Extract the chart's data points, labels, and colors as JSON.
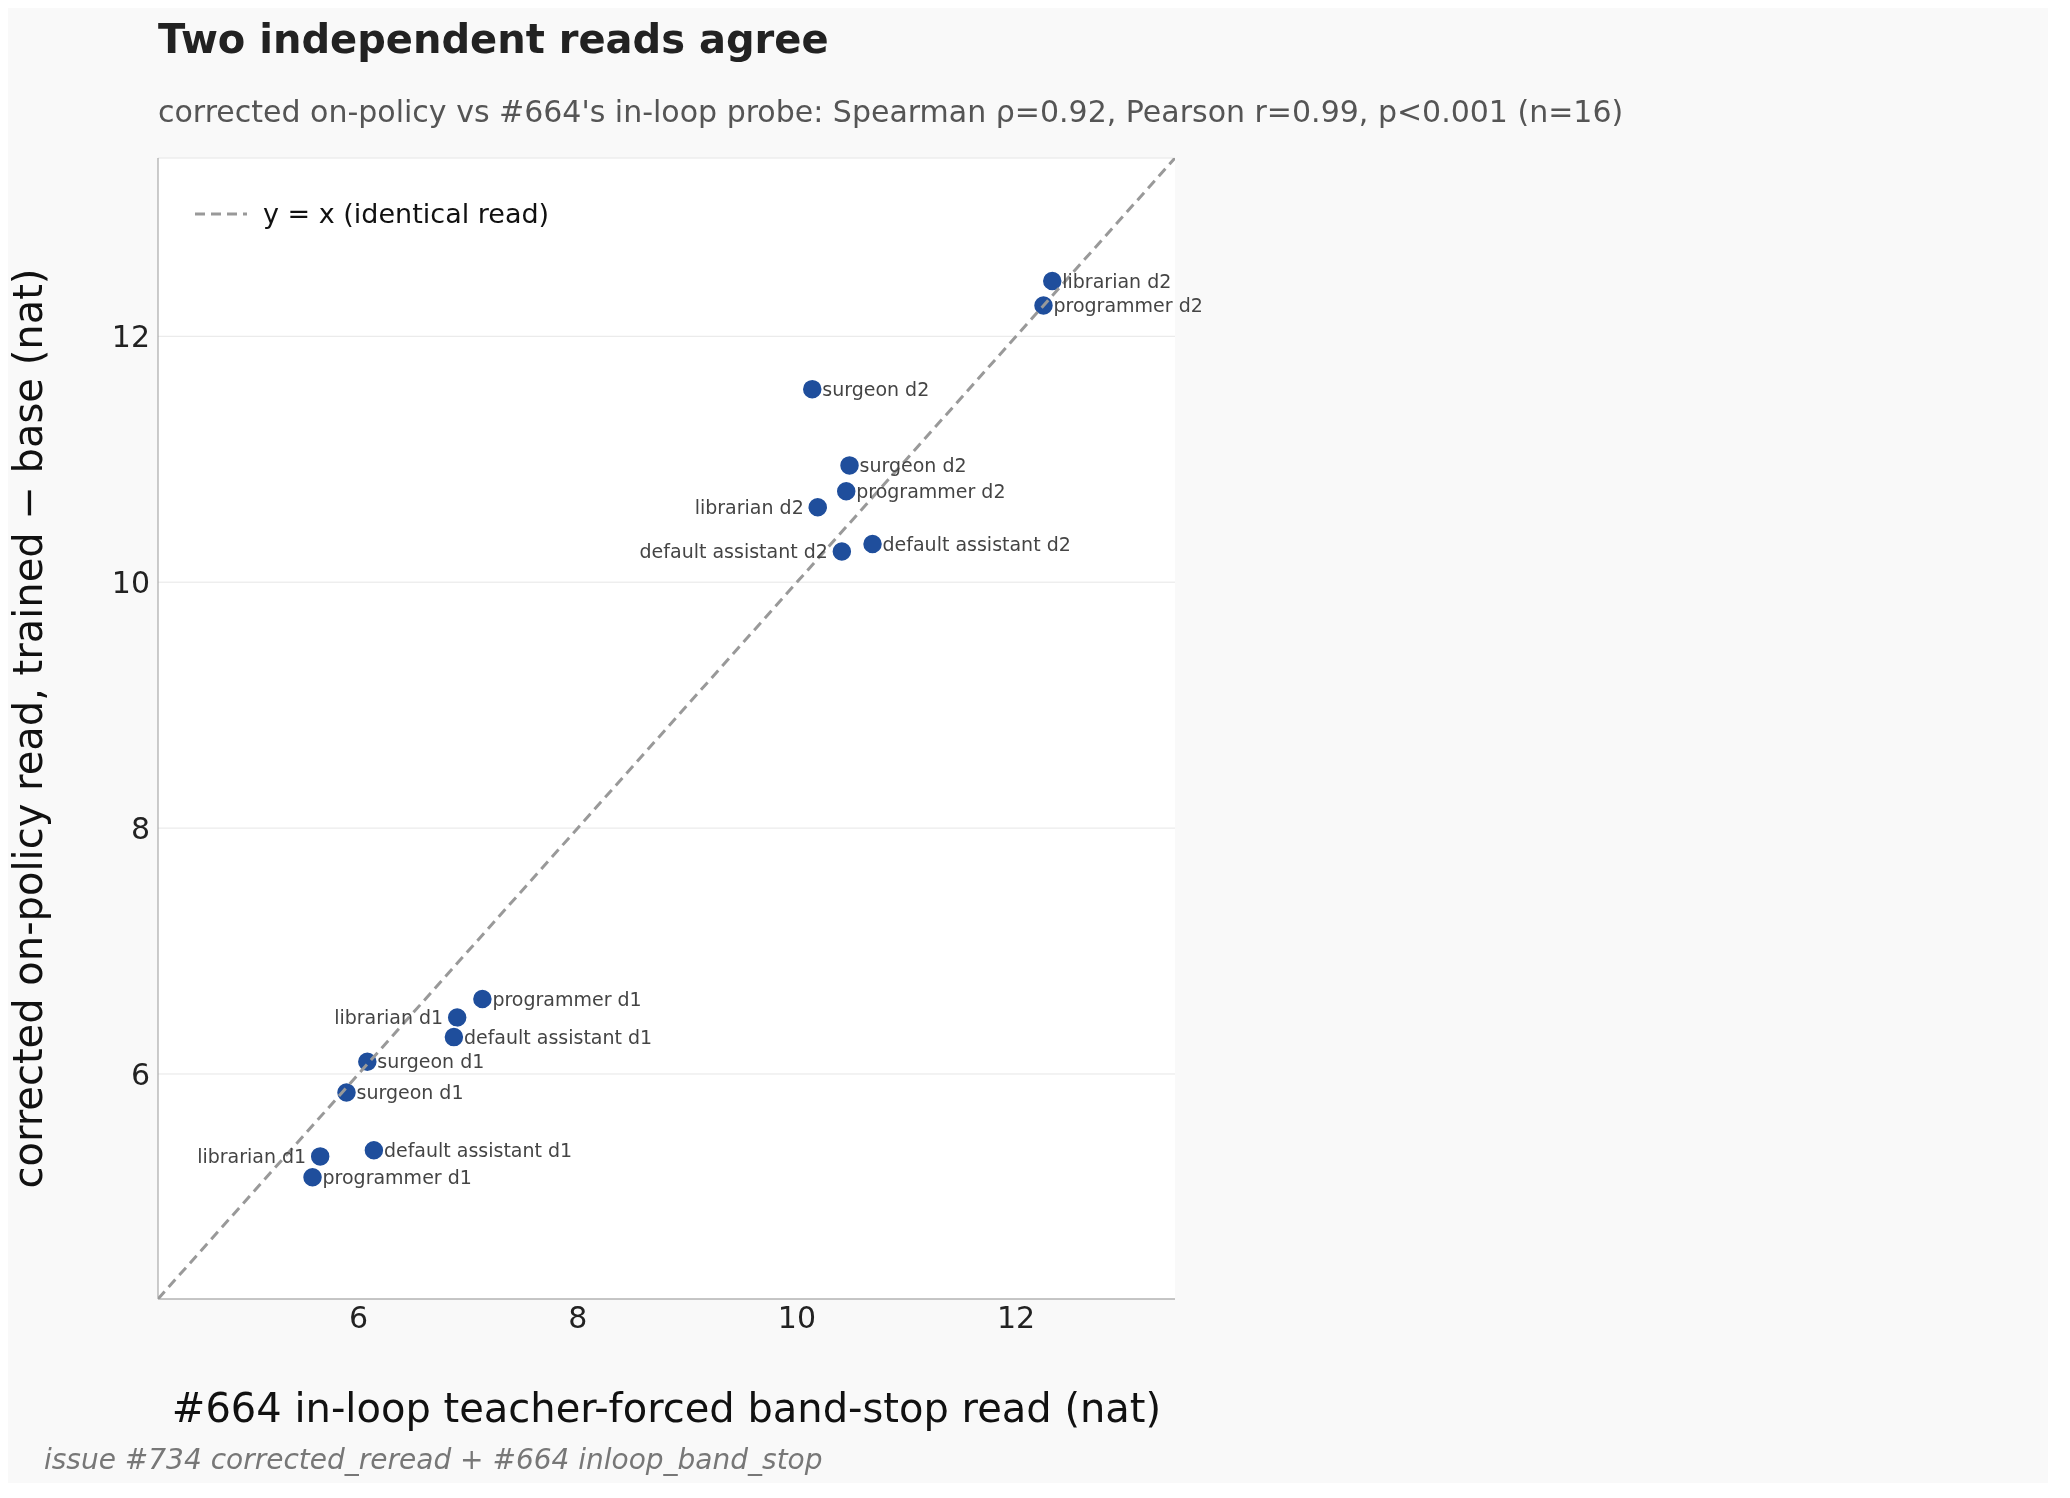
{
  "chart_data": {
    "type": "scatter",
    "title": "Two independent reads agree",
    "subtitle": "corrected on-policy vs #664's in-loop probe: Spearman ρ=0.92, Pearson r=0.99, p<0.001 (n=16)",
    "xlabel": "#664 in-loop teacher-forced band-stop read (nat)",
    "ylabel": "corrected on-policy read, trained − base (nat)",
    "xlim": [
      4.17,
      13.45
    ],
    "ylim": [
      4.17,
      13.45
    ],
    "xticks": [
      6,
      8,
      10,
      12
    ],
    "yticks": [
      6,
      8,
      10,
      12
    ],
    "grid": "y",
    "legend": "top left",
    "marker": "circle",
    "series": [
      {
        "color": "#1f4e9c",
        "x": [
          12.33,
          12.25,
          10.14,
          10.48,
          10.45,
          10.19,
          10.69,
          10.41,
          7.13,
          6.9,
          6.87,
          6.08,
          5.89,
          6.14,
          5.65,
          5.58
        ],
        "values": [
          12.45,
          12.25,
          11.57,
          10.95,
          10.74,
          10.61,
          10.31,
          10.25,
          6.61,
          6.46,
          6.3,
          6.1,
          5.85,
          5.38,
          5.33,
          5.16
        ]
      },
      {
        "type": "line",
        "name": "y = x (identical read)",
        "color": "#999999",
        "line_style": "dashed",
        "marker": "none",
        "x": [
          4.17,
          13.45
        ],
        "values": [
          4.17,
          13.45
        ]
      }
    ],
    "annotations": [
      {
        "text": "librarian d2",
        "x": 12.33,
        "y": 12.45
      },
      {
        "text": "programmer d2",
        "x": 12.25,
        "y": 12.25
      },
      {
        "text": "surgeon d2",
        "x": 10.14,
        "y": 11.57
      },
      {
        "text": "surgeon d2",
        "x": 10.48,
        "y": 10.95
      },
      {
        "text": "programmer d2",
        "x": 10.45,
        "y": 10.74
      },
      {
        "text": "librarian d2",
        "x": 10.19,
        "y": 10.61
      },
      {
        "text": "default assistant d2",
        "x": 10.69,
        "y": 10.31
      },
      {
        "text": "default assistant d2",
        "x": 10.41,
        "y": 10.25
      },
      {
        "text": "programmer d1",
        "x": 7.13,
        "y": 6.61
      },
      {
        "text": "librarian d1",
        "x": 6.9,
        "y": 6.46
      },
      {
        "text": "default assistant d1",
        "x": 6.87,
        "y": 6.3
      },
      {
        "text": "surgeon d1",
        "x": 6.08,
        "y": 6.1
      },
      {
        "text": "surgeon d1",
        "x": 5.89,
        "y": 5.85
      },
      {
        "text": "default assistant d1",
        "x": 6.14,
        "y": 5.38
      },
      {
        "text": "librarian d1",
        "x": 5.65,
        "y": 5.33
      },
      {
        "text": "programmer d1",
        "x": 5.58,
        "y": 5.16
      },
      "issue #734 corrected_reread + #664 inloop_band_stop"
    ]
  }
}
